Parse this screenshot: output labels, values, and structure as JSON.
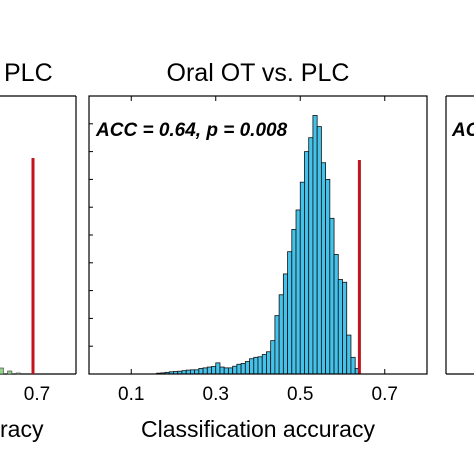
{
  "chart_data": [
    {
      "type": "bar",
      "panel": "left (partially visible)",
      "title": "PLC",
      "xlabel": "racy",
      "x_ticks": [
        "0.7"
      ],
      "xlim": [
        0.0,
        0.8
      ],
      "chance_line_x": 0.7,
      "bins": [
        0.62,
        0.64,
        0.66
      ],
      "counts": [
        6,
        3,
        1
      ],
      "colors": {
        "bar": "#8fd48a",
        "line": "#c0141e"
      }
    },
    {
      "type": "bar",
      "panel": "center",
      "title": "Oral OT vs. PLC",
      "annotation": "ACC = 0.64, p = 0.008",
      "xlabel": "Classification accuracy",
      "x_ticks": [
        "0.1",
        "0.3",
        "0.5",
        "0.7"
      ],
      "xlim": [
        0.0,
        0.8
      ],
      "ylim": [
        0,
        1000
      ],
      "observed_accuracy": 0.64,
      "bin_width": 0.01,
      "bins": [
        0.16,
        0.17,
        0.18,
        0.19,
        0.2,
        0.21,
        0.22,
        0.23,
        0.24,
        0.25,
        0.26,
        0.27,
        0.28,
        0.29,
        0.3,
        0.31,
        0.32,
        0.33,
        0.34,
        0.35,
        0.36,
        0.37,
        0.38,
        0.39,
        0.4,
        0.41,
        0.42,
        0.43,
        0.44,
        0.45,
        0.46,
        0.47,
        0.48,
        0.49,
        0.5,
        0.51,
        0.52,
        0.53,
        0.54,
        0.55,
        0.56,
        0.57,
        0.58,
        0.59,
        0.6,
        0.61,
        0.62,
        0.63
      ],
      "counts": [
        3,
        4,
        6,
        8,
        9,
        10,
        12,
        14,
        15,
        15,
        20,
        22,
        25,
        27,
        40,
        25,
        22,
        22,
        28,
        35,
        38,
        45,
        55,
        60,
        62,
        70,
        80,
        120,
        210,
        285,
        360,
        440,
        520,
        590,
        690,
        800,
        850,
        930,
        890,
        760,
        700,
        560,
        430,
        340,
        330,
        140,
        60,
        20
      ],
      "colors": {
        "bar": "#44c2ea",
        "bar_edge": "#111111",
        "line": "#c0141e",
        "annotation": "#1aa3e8"
      }
    },
    {
      "type": "bar",
      "panel": "right (partially visible)",
      "annotation": "AC",
      "colors": {
        "annotation": "#333333"
      }
    }
  ]
}
